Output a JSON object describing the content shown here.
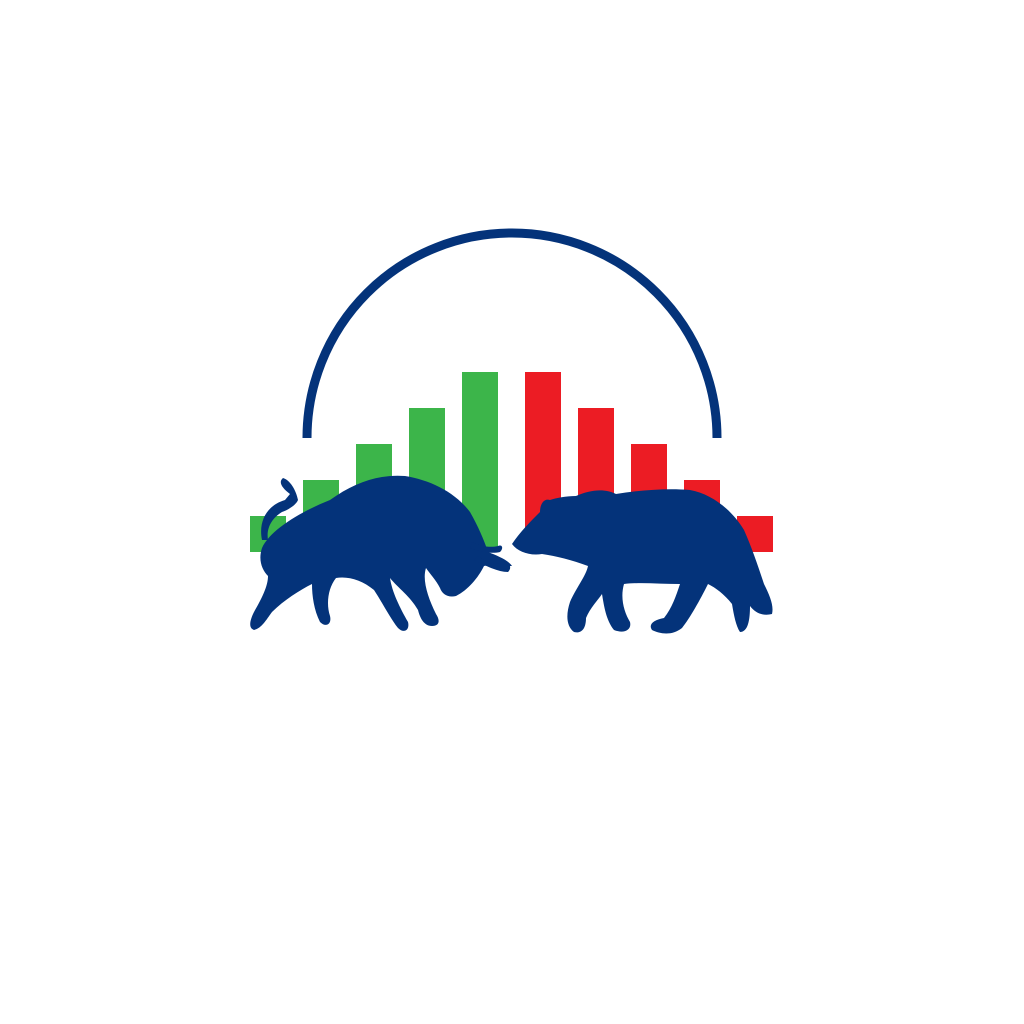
{
  "logo": {
    "name": "bull-and-bear-market-logo",
    "colors": {
      "background": "#ffffff",
      "navy": "#04337a",
      "up_green": "#3cb54a",
      "down_red": "#ec1c24",
      "wordmark_faint": "#fffdf6"
    },
    "bars": {
      "rising": [
        1,
        2,
        3,
        4,
        5
      ],
      "falling": [
        5,
        4,
        3,
        2,
        1
      ]
    },
    "icons": [
      "arc-icon",
      "bull-icon",
      "bear-icon"
    ],
    "wordmark": ""
  }
}
